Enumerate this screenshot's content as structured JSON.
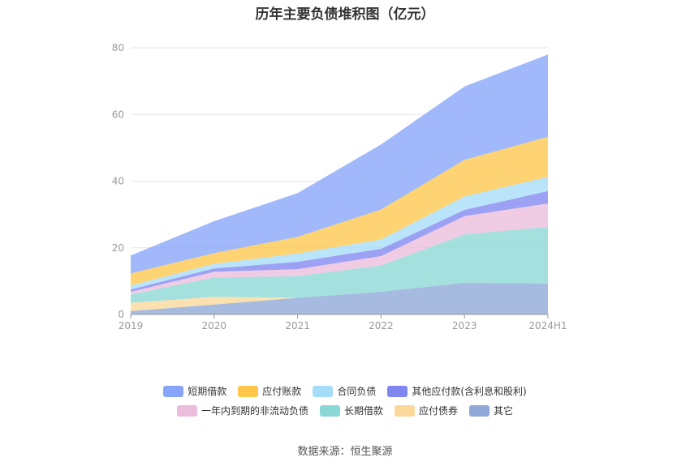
{
  "chart_data": {
    "type": "area",
    "title": "历年主要负债堆积图（亿元）",
    "categories": [
      "2019",
      "2020",
      "2021",
      "2022",
      "2023",
      "2024H1"
    ],
    "ylim": [
      0,
      80
    ],
    "yticks": [
      0,
      20,
      40,
      60,
      80
    ],
    "grid": true,
    "legend_position": "bottom",
    "series": [
      {
        "name": "其它",
        "color": "#8ea8d8",
        "values": [
          1.0,
          3.0,
          5.0,
          6.8,
          9.5,
          9.3
        ]
      },
      {
        "name": "应付债券",
        "color": "#fbd89a",
        "values": [
          2.5,
          2.3,
          0,
          0,
          0,
          0
        ]
      },
      {
        "name": "长期借款",
        "color": "#8ad8d5",
        "values": [
          2.5,
          5.8,
          6.5,
          7.9,
          14.5,
          17.0
        ]
      },
      {
        "name": "一年内到期的非流动负债",
        "color": "#ecbcdc",
        "values": [
          0.8,
          1.7,
          2.1,
          2.8,
          5.5,
          7.0
        ]
      },
      {
        "name": "其他应付款(含利息和股利)",
        "color": "#8187f0",
        "values": [
          0.7,
          1.0,
          2.2,
          2.2,
          1.9,
          3.7
        ]
      },
      {
        "name": "合同负债",
        "color": "#a5ddf8",
        "values": [
          1.2,
          1.4,
          2.5,
          2.8,
          4.0,
          4.3
        ]
      },
      {
        "name": "应付账款",
        "color": "#fdc74c",
        "values": [
          3.6,
          3.2,
          5.0,
          9.0,
          11.0,
          12.0
        ]
      },
      {
        "name": "短期借款",
        "color": "#87a5f8",
        "values": [
          5.4,
          9.6,
          13.1,
          19.5,
          22.0,
          24.7
        ]
      }
    ]
  },
  "legend": {
    "row1": [
      {
        "label": "短期借款",
        "color": "#87a5f8"
      },
      {
        "label": "应付账款",
        "color": "#fdc74c"
      },
      {
        "label": "合同负债",
        "color": "#a5ddf8"
      },
      {
        "label": "其他应付款(含利息和股利)",
        "color": "#8187f0"
      }
    ],
    "row2": [
      {
        "label": "一年内到期的非流动负债",
        "color": "#ecbcdc"
      },
      {
        "label": "长期借款",
        "color": "#8ad8d5"
      },
      {
        "label": "应付债券",
        "color": "#fbd89a"
      },
      {
        "label": "其它",
        "color": "#8ea8d8"
      }
    ]
  },
  "source": "数据来源：恒生聚源"
}
